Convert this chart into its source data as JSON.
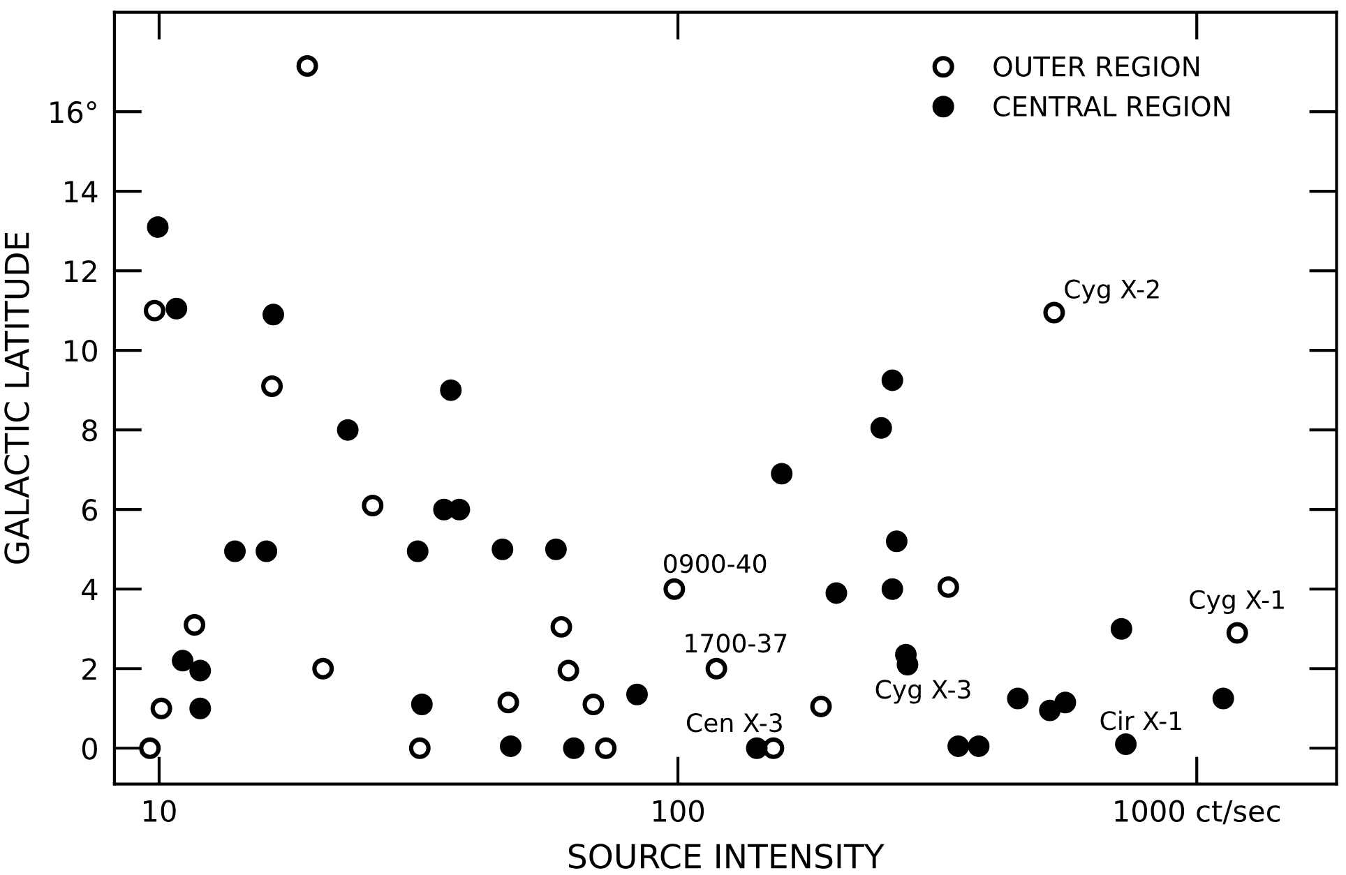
{
  "chart_data": {
    "type": "scatter",
    "xlabel": "SOURCE INTENSITY",
    "ylabel": "GALACTIC LATITUDE",
    "log": "x",
    "grid": false,
    "legend": "top right",
    "xlim": [
      8.2,
      1860
    ],
    "xticks": [
      10,
      100,
      {
        "value": 1000,
        "label": "1000 ct/sec"
      }
    ],
    "ylim": [
      -0.9,
      18.5
    ],
    "yticks": [
      0,
      2,
      4,
      6,
      8,
      10,
      12,
      14,
      {
        "value": 16,
        "label": "16°"
      }
    ],
    "series": [
      {
        "name": "OUTER REGION",
        "color": "#000000",
        "marker": "open circle",
        "x": [
          9.6,
          10.1,
          9.8,
          11.7,
          19.3,
          16.5,
          20.7,
          25.8,
          31.8,
          47.1,
          59.6,
          61.5,
          68.7,
          72.6,
          98.4,
          118.6,
          152.8,
          188.7,
          332,
          531,
          1197
        ],
        "values": [
          0,
          1,
          11,
          3.1,
          17.15,
          9.1,
          2,
          6.1,
          0,
          1.15,
          3.05,
          1.95,
          1.1,
          0,
          4,
          2,
          0,
          1.05,
          4.05,
          10.95,
          2.9
        ]
      },
      {
        "name": "CENTRAL REGION",
        "color": "#000000",
        "marker": "circle",
        "x": [
          9.94,
          10.8,
          16.6,
          36.5,
          23.1,
          14.0,
          16.1,
          11.1,
          12.0,
          12.0,
          31.5,
          32.1,
          35.4,
          37.9,
          45.9,
          58.2,
          47.6,
          63.0,
          83.4,
          141.9,
          158.5,
          202,
          246.5,
          259,
          264,
          259,
          275,
          277,
          347,
          380,
          452,
          521,
          558,
          716,
          730,
          1125
        ],
        "values": [
          13.1,
          11.05,
          10.9,
          9.0,
          8.0,
          4.95,
          4.95,
          2.2,
          1.95,
          1.0,
          4.95,
          1.1,
          6.0,
          6.0,
          5.0,
          5.0,
          0.05,
          0,
          1.35,
          0,
          6.9,
          3.9,
          8.05,
          9.25,
          5.2,
          4.0,
          2.35,
          2.1,
          0.05,
          0.05,
          1.25,
          0.95,
          1.15,
          3.0,
          0.1,
          1.25
        ]
      }
    ],
    "annotations": [
      {
        "text": "Cyg X-2",
        "x": 531,
        "y": 10.95
      },
      {
        "text": "0900-40",
        "x": 98.4,
        "y": 4
      },
      {
        "text": "1700-37",
        "x": 118.6,
        "y": 2
      },
      {
        "text": "Cen X-3",
        "x": 152.8,
        "y": 0
      },
      {
        "text": "Cyg X-3",
        "x": 275,
        "y": 2.35
      },
      {
        "text": "Cir X-1",
        "x": 730,
        "y": 0.1
      },
      {
        "text": "Cyg X-1",
        "x": 1197,
        "y": 2.9
      }
    ]
  }
}
